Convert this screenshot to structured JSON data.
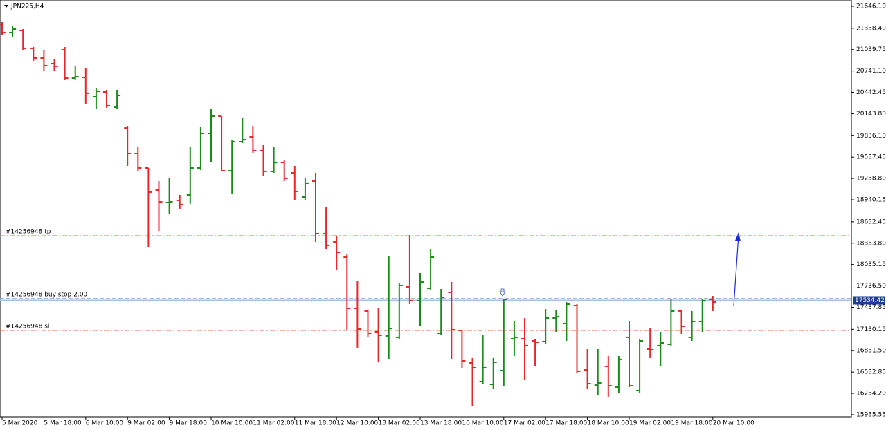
{
  "chart_data": {
    "type": "ohlc",
    "title": "JPN225,H4",
    "categories": [
      "5 Mar 2020",
      null,
      null,
      null,
      "5 Mar 18:00",
      null,
      null,
      null,
      "6 Mar 10:00",
      null,
      null,
      null,
      "9 Mar 02:00",
      null,
      null,
      null,
      "9 Mar 18:00",
      null,
      null,
      null,
      "10 Mar 10:00",
      null,
      null,
      null,
      "11 Mar 02:00",
      null,
      null,
      null,
      "11 Mar 18:00",
      null,
      null,
      null,
      "12 Mar 10:00",
      null,
      null,
      null,
      "13 Mar 02:00",
      null,
      null,
      null,
      "13 Mar 18:00",
      null,
      null,
      null,
      "16 Mar 10:00",
      null,
      null,
      null,
      "17 Mar 02:00",
      null,
      null,
      null,
      "17 Mar 18:00",
      null,
      null,
      null,
      "18 Mar 10:00",
      null,
      null,
      null,
      "19 Mar 02:00",
      null,
      null,
      null,
      "19 Mar 18:00",
      null,
      null,
      null,
      "20 Mar 10:00"
    ],
    "open": [
      21395,
      21279,
      21308,
      21057,
      20921,
      20844,
      21037,
      20641,
      20651,
      20380,
      20448,
      20235,
      19945,
      19588,
      19385,
      19076,
      18902,
      18931,
      19008,
      19385,
      19868,
      20110,
      19346,
      19752,
      19820,
      19627,
      19337,
      19462,
      19317,
      18979,
      19201,
      18467,
      18351,
      18138,
      17423,
      17385,
      17095,
      17037,
      17018,
      17723,
      17530,
      17704,
      17075,
      17646,
      17114,
      16660,
      16399,
      16360,
      16554,
      16998,
      16998,
      16969,
      16960,
      17288,
      17211,
      17462,
      16563,
      16350,
      16612,
      16322,
      17018,
      16273,
      16853,
      16902,
      16921,
      17385,
      17018,
      17240,
      17549
    ],
    "high": [
      21424,
      21366,
      21327,
      21076,
      21037,
      20902,
      21076,
      20805,
      20776,
      20496,
      20477,
      20477,
      19974,
      19684,
      19385,
      19201,
      19250,
      19008,
      19675,
      19955,
      20206,
      20110,
      19781,
      20090,
      19974,
      19704,
      19675,
      19491,
      19414,
      19240,
      19317,
      18834,
      18428,
      18177,
      17800,
      17404,
      17423,
      18158,
      17771,
      18448,
      17916,
      18254,
      17694,
      17790,
      17124,
      16728,
      17046,
      16728,
      17559,
      17240,
      17288,
      16998,
      17414,
      17404,
      17510,
      17481,
      16853,
      16853,
      16757,
      16757,
      17240,
      16998,
      17143,
      17095,
      17559,
      17404,
      17385,
      17559,
      17597
    ],
    "low": [
      21250,
      21221,
      21037,
      20883,
      20747,
      20738,
      20622,
      20612,
      20284,
      20206,
      20226,
      20206,
      19414,
      19337,
      18283,
      18506,
      18737,
      18805,
      18883,
      19356,
      19462,
      19337,
      19027,
      19733,
      19588,
      19279,
      19317,
      19201,
      18931,
      18931,
      18351,
      18254,
      17965,
      17114,
      16873,
      17027,
      16670,
      16708,
      16998,
      17481,
      17172,
      17675,
      17056,
      16708,
      16592,
      16051,
      16370,
      16302,
      16341,
      16757,
      16418,
      16612,
      16931,
      17095,
      16969,
      16515,
      16302,
      16206,
      16186,
      16244,
      16322,
      16244,
      16728,
      16612,
      16902,
      17066,
      16969,
      17095,
      17385
    ],
    "close": [
      21279,
      21327,
      21057,
      20921,
      20815,
      20805,
      20641,
      20660,
      20429,
      20457,
      20255,
      20399,
      19588,
      19385,
      19047,
      18911,
      18911,
      18873,
      19385,
      19868,
      20110,
      19346,
      19752,
      19781,
      19627,
      19337,
      19462,
      19240,
      19056,
      19172,
      18467,
      18303,
      18206,
      17423,
      17133,
      17075,
      17046,
      17143,
      17742,
      17530,
      17790,
      18138,
      17578,
      17124,
      16689,
      16592,
      16592,
      16670,
      17549,
      17018,
      16902,
      16950,
      17288,
      17307,
      17481,
      16544,
      16370,
      16380,
      16341,
      16709,
      16341,
      16969,
      16844,
      16940,
      17385,
      17172,
      17240,
      17530,
      17510
    ],
    "up_color": "#1a8a1a",
    "down_color": "#e8262a",
    "ylim": [
      15906,
      21733
    ],
    "yticks": [
      {
        "value": 21646.1,
        "label": "21646.10"
      },
      {
        "value": 21338.4,
        "label": "21338.40"
      },
      {
        "value": 21039.75,
        "label": "21039.75"
      },
      {
        "value": 20741.1,
        "label": "20741.10"
      },
      {
        "value": 20442.45,
        "label": "20442.45"
      },
      {
        "value": 20143.8,
        "label": "20143.80"
      },
      {
        "value": 19836.1,
        "label": "19836.10"
      },
      {
        "value": 19537.45,
        "label": "19537.45"
      },
      {
        "value": 19238.8,
        "label": "19238.80"
      },
      {
        "value": 18940.15,
        "label": "18940.15"
      },
      {
        "value": 18632.45,
        "label": "18632.45"
      },
      {
        "value": 18333.8,
        "label": "18333.80"
      },
      {
        "value": 18035.15,
        "label": "18035.15"
      },
      {
        "value": 17736.5,
        "label": "17736.50"
      },
      {
        "value": 17437.85,
        "label": "17437.85"
      },
      {
        "value": 17130.15,
        "label": "17130.15"
      },
      {
        "value": 16831.5,
        "label": "16831.50"
      },
      {
        "value": 16532.85,
        "label": "16532.85"
      },
      {
        "value": 16234.2,
        "label": "16234.20"
      },
      {
        "value": 15935.55,
        "label": "15935.55"
      }
    ],
    "levels": [
      {
        "label": "#14256948 tp",
        "value": 18438,
        "color": "#e07040",
        "style": "dashdot"
      },
      {
        "label": "#14256948 buy stop 2.00",
        "value": 17559,
        "color": "#8aa0c0",
        "style": "dash"
      },
      {
        "label": "#14256948 sl",
        "value": 17114,
        "color": "#e07040",
        "style": "dashdot"
      }
    ],
    "bid": 17534.42,
    "bid_color": "#a9c1e6",
    "bid_tag_color": "#1c3c96"
  }
}
